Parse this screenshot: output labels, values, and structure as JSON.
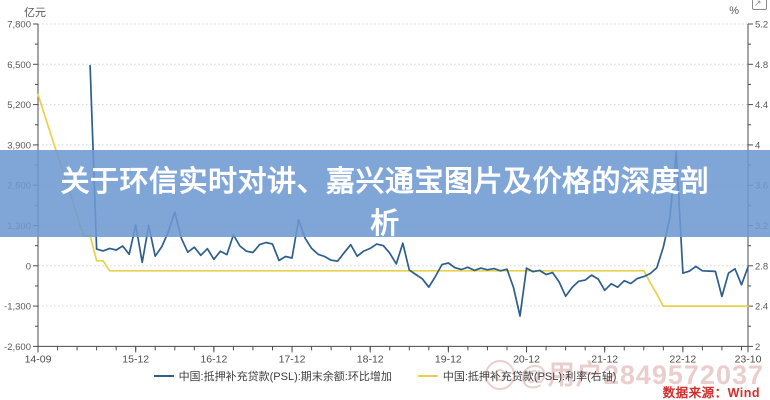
{
  "overlay": {
    "title": "关于环信实时对讲、嘉兴通宝图片及价格的深度剖析"
  },
  "watermark": {
    "handle": "@用户2849572037",
    "source_label": "数据来源：Wind",
    "eye_icon": "weibo-eye-icon"
  },
  "controls": {
    "expand_icon_glyph": "↗"
  },
  "chart_data": {
    "type": "line",
    "title": "",
    "left_axis": {
      "unit": "亿元",
      "min": -2600,
      "max": 7800,
      "step": 1300,
      "tick_labels": [
        "7,800",
        "6,500",
        "5,200",
        "3,900",
        "2,600",
        "1,300",
        "0",
        "-1,300",
        "-2,600"
      ],
      "tick_values": [
        7800,
        6500,
        5200,
        3900,
        2600,
        1300,
        0,
        -1300,
        -2600
      ]
    },
    "right_axis": {
      "unit": "%",
      "min": 2,
      "max": 5.2,
      "step": 0.4,
      "tick_labels": [
        "5.2",
        "4.8",
        "4.4",
        "4",
        "3.6",
        "3.2",
        "2.8",
        "2.4",
        "2"
      ],
      "tick_values": [
        5.2,
        4.8,
        4.4,
        4,
        3.6,
        3.2,
        2.8,
        2.4,
        2
      ]
    },
    "x_axis": {
      "labels_shown": [
        "14-09",
        "15-12",
        "16-12",
        "17-12",
        "18-12",
        "19-12",
        "20-12",
        "21-12",
        "22-12",
        "23-10"
      ],
      "minor_tick_every_months": 3
    },
    "grid": "dotted-horizontal",
    "legend_position": "bottom-center",
    "x": [
      "14-09",
      "14-10",
      "14-11",
      "14-12",
      "15-01",
      "15-02",
      "15-03",
      "15-04",
      "15-05",
      "15-06",
      "15-07",
      "15-08",
      "15-09",
      "15-10",
      "15-11",
      "15-12",
      "16-01",
      "16-02",
      "16-03",
      "16-04",
      "16-05",
      "16-06",
      "16-07",
      "16-08",
      "16-09",
      "16-10",
      "16-11",
      "16-12",
      "17-01",
      "17-02",
      "17-03",
      "17-04",
      "17-05",
      "17-06",
      "17-07",
      "17-08",
      "17-09",
      "17-10",
      "17-11",
      "17-12",
      "18-01",
      "18-02",
      "18-03",
      "18-04",
      "18-05",
      "18-06",
      "18-07",
      "18-08",
      "18-09",
      "18-10",
      "18-11",
      "18-12",
      "19-01",
      "19-02",
      "19-03",
      "19-04",
      "19-05",
      "19-06",
      "19-07",
      "19-08",
      "19-09",
      "19-10",
      "19-11",
      "19-12",
      "20-01",
      "20-02",
      "20-03",
      "20-04",
      "20-05",
      "20-06",
      "20-07",
      "20-08",
      "20-09",
      "20-10",
      "20-11",
      "20-12",
      "21-01",
      "21-02",
      "21-03",
      "21-04",
      "21-05",
      "21-06",
      "21-07",
      "21-08",
      "21-09",
      "21-10",
      "21-11",
      "21-12",
      "22-01",
      "22-02",
      "22-03",
      "22-04",
      "22-05",
      "22-06",
      "22-07",
      "22-08",
      "22-09",
      "22-10",
      "22-11",
      "22-12",
      "23-01",
      "23-02",
      "23-03",
      "23-04",
      "23-05",
      "23-06",
      "23-07",
      "23-08",
      "23-09",
      "23-10"
    ],
    "series": [
      {
        "name": "中国:抵押补充贷款(PSL):期末余额:环比增加",
        "axis": "left",
        "color": "#2d5e8c",
        "values": [
          null,
          null,
          null,
          null,
          null,
          null,
          null,
          null,
          6459,
          540,
          480,
          560,
          510,
          640,
          370,
          1320,
          110,
          1300,
          310,
          620,
          1100,
          1730,
          890,
          440,
          600,
          340,
          550,
          210,
          470,
          360,
          1000,
          640,
          470,
          430,
          680,
          750,
          700,
          170,
          300,
          250,
          1480,
          890,
          560,
          370,
          300,
          180,
          150,
          420,
          680,
          310,
          475,
          560,
          700,
          650,
          410,
          60,
          730,
          -140,
          -280,
          -420,
          -690,
          -350,
          40,
          90,
          -60,
          -120,
          -50,
          -150,
          -75,
          -130,
          -90,
          -160,
          -110,
          -700,
          -1620,
          -75,
          -190,
          -150,
          -280,
          -220,
          -520,
          -980,
          -700,
          -500,
          -460,
          -300,
          -430,
          -790,
          -580,
          -690,
          -480,
          -570,
          -410,
          -350,
          -250,
          -60,
          600,
          1543,
          3675,
          -240,
          -170,
          -20,
          -160,
          -170,
          -180,
          -990,
          -235,
          -97,
          -613,
          -40
        ]
      },
      {
        "name": "中国:抵押补充贷款(PSL):利率(右轴)",
        "axis": "right",
        "color": "#e7d14b",
        "values": [
          4.5,
          4.3,
          4.1,
          3.9,
          3.7,
          3.5,
          3.3,
          3.1,
          3.1,
          2.85,
          2.85,
          2.75,
          2.75,
          2.75,
          2.75,
          2.75,
          2.75,
          2.75,
          2.75,
          2.75,
          2.75,
          2.75,
          2.75,
          2.75,
          2.75,
          2.75,
          2.75,
          2.75,
          2.75,
          2.75,
          2.75,
          2.75,
          2.75,
          2.75,
          2.75,
          2.75,
          2.75,
          2.75,
          2.75,
          2.75,
          2.75,
          2.75,
          2.75,
          2.75,
          2.75,
          2.75,
          2.75,
          2.75,
          2.75,
          2.75,
          2.75,
          2.75,
          2.75,
          2.75,
          2.75,
          2.75,
          2.75,
          2.75,
          2.75,
          2.75,
          2.75,
          2.75,
          2.75,
          2.75,
          2.75,
          2.75,
          2.75,
          2.75,
          2.75,
          2.75,
          2.75,
          2.75,
          2.75,
          2.75,
          2.75,
          2.75,
          2.75,
          2.75,
          2.75,
          2.75,
          2.75,
          2.75,
          2.75,
          2.75,
          2.75,
          2.75,
          2.75,
          2.75,
          2.75,
          2.75,
          2.75,
          2.75,
          2.75,
          2.75,
          2.63,
          2.52,
          2.4,
          2.4,
          2.4,
          2.4,
          2.4,
          2.4,
          2.4,
          2.4,
          2.4,
          2.4,
          2.4,
          2.4,
          2.4,
          2.4
        ]
      }
    ]
  }
}
